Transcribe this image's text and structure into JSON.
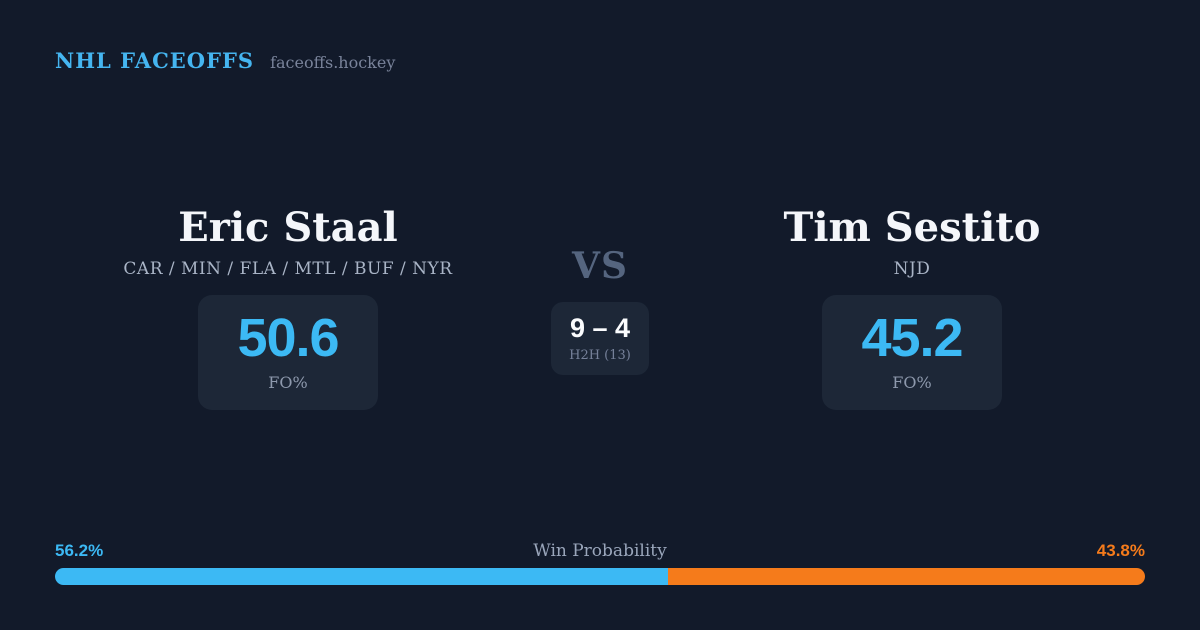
{
  "header": {
    "brand": "NHL FACEOFFS",
    "site": "faceoffs.hockey"
  },
  "players": {
    "left": {
      "name": "Eric Staal",
      "teams": "CAR / MIN / FLA / MTL / BUF / NYR",
      "fo_pct": "50.6",
      "fo_label": "FO%"
    },
    "right": {
      "name": "Tim Sestito",
      "teams": "NJD",
      "fo_pct": "45.2",
      "fo_label": "FO%"
    }
  },
  "matchup": {
    "vs_label": "VS",
    "h2h_score": "9 – 4",
    "h2h_label": "H2H (13)"
  },
  "win_probability": {
    "label": "Win Probability",
    "left_pct_text": "56.2%",
    "right_pct_text": "43.8%",
    "left_value": 56.2,
    "right_value": 43.8
  },
  "colors": {
    "background": "#121a2a",
    "card_box": "#1d2737",
    "accent_blue": "#3cb9f4",
    "accent_orange": "#f57b1b"
  }
}
